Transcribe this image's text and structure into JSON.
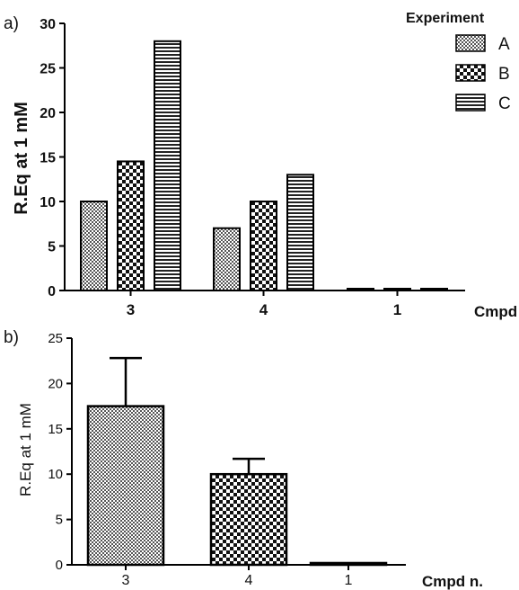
{
  "chart_data": [
    {
      "type": "bar",
      "panel_label": "a)",
      "categories": [
        "3",
        "4",
        "1"
      ],
      "series": [
        {
          "name": "A",
          "values": [
            10,
            7,
            0.2
          ]
        },
        {
          "name": "B",
          "values": [
            14.5,
            10,
            0.2
          ]
        },
        {
          "name": "C",
          "values": [
            28,
            13,
            0.2
          ]
        }
      ],
      "ylabel": "R.Eq at 1 mM",
      "xlabel": "Cmpd n.",
      "ylim": [
        0,
        30
      ],
      "yticks": [
        "0",
        "5",
        "10",
        "15",
        "20",
        "25",
        "30"
      ],
      "legend_title": "Experiment",
      "legend_position": "top-right",
      "grid": false
    },
    {
      "type": "bar",
      "panel_label": "b)",
      "categories": [
        "3",
        "4",
        "1"
      ],
      "values": [
        17.5,
        10,
        0.2
      ],
      "error_upper": [
        22.8,
        11.7,
        null
      ],
      "ylabel": "R.Eq at 1 mM",
      "xlabel": "Cmpd n.",
      "ylim": [
        0,
        25
      ],
      "yticks": [
        "0",
        "5",
        "10",
        "15",
        "20",
        "25"
      ],
      "grid": false
    }
  ]
}
